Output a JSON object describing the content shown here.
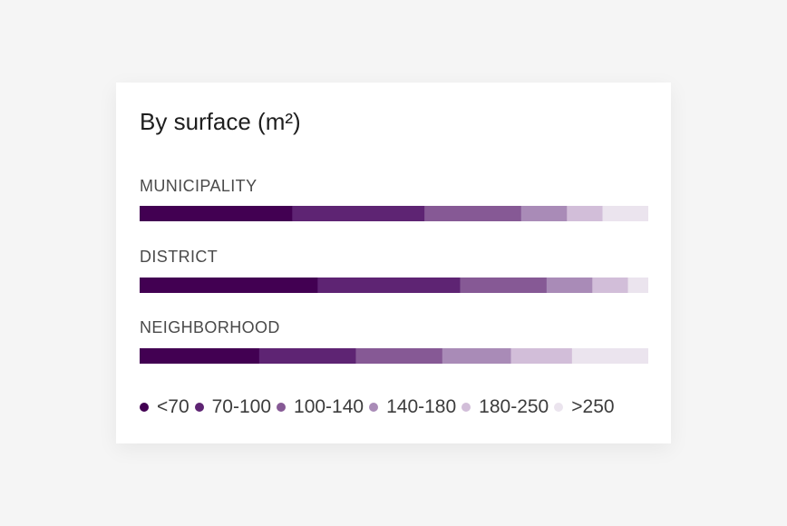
{
  "chart_data": {
    "type": "bar",
    "stacked": true,
    "normalized": true,
    "title": "By surface (m²)",
    "categories": [
      "MUNICIPALITY",
      "DISTRICT",
      "NEIGHBORHOOD"
    ],
    "series": [
      {
        "name": "<70",
        "color": "#420052",
        "values": [
          30,
          35,
          23.5
        ]
      },
      {
        "name": "70-100",
        "color": "#5e2473",
        "values": [
          26,
          28,
          19
        ]
      },
      {
        "name": "100-140",
        "color": "#865995",
        "values": [
          19,
          17,
          17
        ]
      },
      {
        "name": "140-180",
        "color": "#a98bb7",
        "values": [
          9,
          9,
          13.5
        ]
      },
      {
        "name": "180-250",
        "color": "#d2bed9",
        "values": [
          7,
          7,
          12
        ]
      },
      {
        "name": ">250",
        "color": "#ebe4ee",
        "values": [
          9,
          4,
          15
        ]
      }
    ],
    "legend_position": "bottom"
  }
}
